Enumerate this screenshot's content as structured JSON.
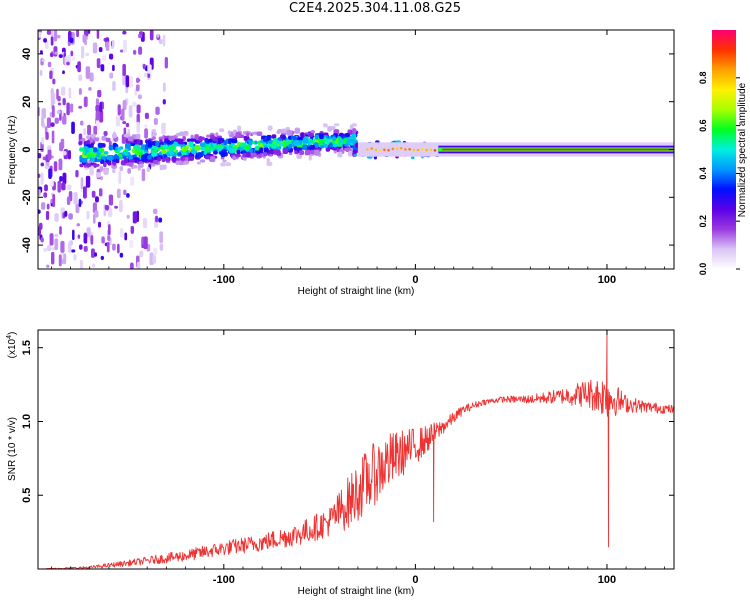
{
  "title": "C2E4.2025.304.11.08.G25",
  "chart_data": [
    {
      "type": "heatmap",
      "name": "spectrogram",
      "xlabel": "Height of straight line (km)",
      "ylabel": "Frequency (Hz)",
      "xlim": [
        -197,
        135
      ],
      "ylim": [
        -50,
        50
      ],
      "xticks": [
        -100,
        0,
        100
      ],
      "yticks": [
        -40,
        -20,
        0,
        20,
        40
      ],
      "colorbar": {
        "label": "Normalized spectral amplitude",
        "range": [
          0.0,
          1.0
        ],
        "ticks": [
          0.0,
          0.2,
          0.4,
          0.6,
          0.8
        ],
        "tick_labels": [
          "0.0",
          "0.2",
          "0.4",
          "0.6",
          "0.8"
        ],
        "colormap": [
          "#ffffff",
          "#d9c4f5",
          "#9a3ae0",
          "#5a00e6",
          "#0010ff",
          "#0098ff",
          "#00f0e0",
          "#00ff20",
          "#a8ff00",
          "#fff000",
          "#ffa000",
          "#ff3000",
          "#ff0070"
        ]
      },
      "features": [
        {
          "name": "scatter-noise",
          "x_range": [
            -197,
            -130
          ],
          "freq_range": [
            -50,
            50
          ],
          "amplitude": 0.1
        },
        {
          "name": "broad-band",
          "x_range": [
            -175,
            -30
          ],
          "freq_center": [
            -2,
            4
          ],
          "amplitude": 0.35
        },
        {
          "name": "narrow-line",
          "x_range": [
            -30,
            135
          ],
          "freq_center": [
            0,
            0
          ],
          "amplitude": 0.95
        }
      ]
    },
    {
      "type": "line",
      "name": "snr",
      "xlabel": "Height of straight line (km)",
      "ylabel": "SNR (10 * v/v)",
      "exponent_label": "(x10",
      "exponent_value": "4",
      "exponent_close": ")",
      "xlim": [
        -197,
        135
      ],
      "ylim": [
        0,
        1.62
      ],
      "xticks": [
        -100,
        0,
        100
      ],
      "yticks": [
        0.5,
        1.0,
        1.5
      ],
      "ytick_labels": [
        "0.5",
        "1.0",
        "1.5"
      ],
      "color": "#ee3333",
      "trend": {
        "x": [
          -197,
          -170,
          -150,
          -120,
          -100,
          -80,
          -60,
          -45,
          -35,
          -25,
          -15,
          -5,
          5,
          15,
          25,
          35,
          45,
          60,
          75,
          90,
          100,
          110,
          120,
          135
        ],
        "y": [
          0.0,
          0.01,
          0.04,
          0.09,
          0.14,
          0.18,
          0.24,
          0.32,
          0.45,
          0.6,
          0.72,
          0.8,
          0.87,
          0.97,
          1.08,
          1.13,
          1.15,
          1.15,
          1.17,
          1.19,
          1.17,
          1.12,
          1.1,
          1.08
        ],
        "noise": [
          0.0,
          0.01,
          0.02,
          0.04,
          0.05,
          0.06,
          0.08,
          0.1,
          0.18,
          0.22,
          0.2,
          0.15,
          0.1,
          0.05,
          0.03,
          0.02,
          0.02,
          0.03,
          0.05,
          0.1,
          0.15,
          0.06,
          0.04,
          0.03
        ]
      },
      "spikes": [
        {
          "x": 100,
          "y": 1.62
        },
        {
          "x": 100.8,
          "y": 0.15
        },
        {
          "x": 9.5,
          "y": 0.32
        }
      ]
    }
  ]
}
